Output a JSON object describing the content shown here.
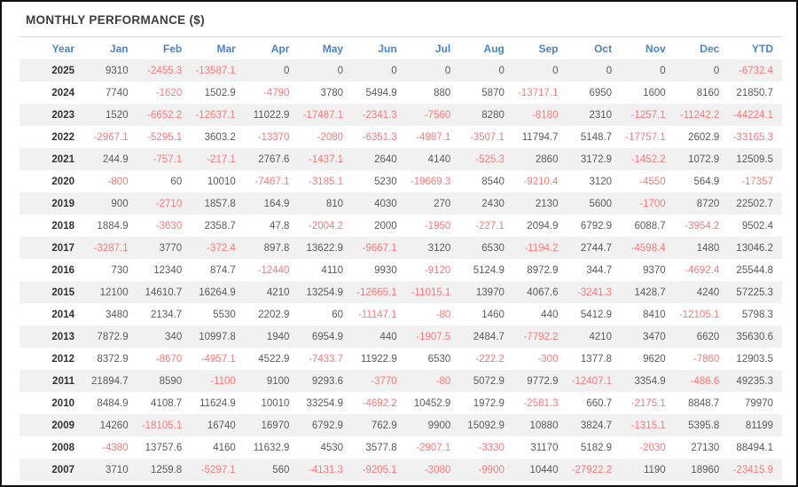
{
  "page": {
    "title": "MONTHLY PERFORMANCE ($)"
  },
  "colors": {
    "header_blue": "#4a84c4",
    "negative_red": "#fb7878",
    "value_gray": "#5a5a5a",
    "year_dark": "#333333",
    "stripe_gray": "#f1f1f1",
    "frame_border": "#111111"
  },
  "table": {
    "columns": [
      "Year",
      "Jan",
      "Feb",
      "Mar",
      "Apr",
      "May",
      "Jun",
      "Jul",
      "Aug",
      "Sep",
      "Oct",
      "Nov",
      "Dec",
      "YTD"
    ],
    "rows": [
      {
        "year": "2025",
        "values": [
          9310,
          -2455.3,
          -13587.1,
          0,
          0,
          0,
          0,
          0,
          0,
          0,
          0,
          0,
          -6732.4
        ]
      },
      {
        "year": "2024",
        "values": [
          7740,
          -1620,
          1502.9,
          -4790,
          3780,
          5494.9,
          880,
          5870,
          -13717.1,
          6950,
          1600,
          8160,
          21850.7
        ]
      },
      {
        "year": "2023",
        "values": [
          1520,
          -6652.2,
          -12637.1,
          11022.9,
          -17487.1,
          -2341.3,
          -7560,
          8280,
          -8180,
          2310,
          -1257.1,
          -11242.2,
          -44224.1
        ]
      },
      {
        "year": "2022",
        "values": [
          -2967.1,
          -5295.1,
          3603.2,
          -13370,
          -2080,
          -6351.3,
          -4987.1,
          -3507.1,
          11794.7,
          5148.7,
          -17757.1,
          2602.9,
          -33165.3
        ]
      },
      {
        "year": "2021",
        "values": [
          244.9,
          -757.1,
          -217.1,
          2767.6,
          -1437.1,
          2640,
          4140,
          -525.3,
          2860,
          3172.9,
          -1452.2,
          1072.9,
          12509.5
        ]
      },
      {
        "year": "2020",
        "values": [
          -800,
          60,
          10010,
          -7467.1,
          -3185.1,
          5230,
          -19669.3,
          8540,
          -9210.4,
          3120,
          -4550,
          564.9,
          -17357
        ]
      },
      {
        "year": "2019",
        "values": [
          900,
          -2710,
          1857.8,
          164.9,
          810,
          4030,
          270,
          2430,
          2130,
          5600,
          -1700,
          8720,
          22502.7
        ]
      },
      {
        "year": "2018",
        "values": [
          1884.9,
          -3630,
          2358.7,
          47.8,
          -2004.2,
          2000,
          -1950,
          -227.1,
          2094.9,
          6792.9,
          6088.7,
          -3954.2,
          9502.4
        ]
      },
      {
        "year": "2017",
        "values": [
          -3287.1,
          3770,
          -372.4,
          897.8,
          13622.9,
          -9667.1,
          3120,
          6530,
          -1194.2,
          2744.7,
          -4598.4,
          1480,
          13046.2
        ]
      },
      {
        "year": "2016",
        "values": [
          730,
          12340,
          874.7,
          -12440,
          4110,
          9930,
          -9120,
          5124.9,
          8972.9,
          344.7,
          9370,
          -4692.4,
          25544.8
        ]
      },
      {
        "year": "2015",
        "values": [
          12100,
          14610.7,
          16264.9,
          4210,
          13254.9,
          -12665.1,
          -11015.1,
          13970,
          4067.6,
          -3241.3,
          1428.7,
          4240,
          57225.3
        ]
      },
      {
        "year": "2014",
        "values": [
          3480,
          2134.7,
          5530,
          2202.9,
          60,
          -11147.1,
          -80,
          1460,
          440,
          5412.9,
          8410,
          -12105.1,
          5798.3
        ]
      },
      {
        "year": "2013",
        "values": [
          7872.9,
          340,
          10997.8,
          1940,
          6954.9,
          440,
          -1907.5,
          2484.7,
          -7792.2,
          4210,
          3470,
          6620,
          35630.6
        ]
      },
      {
        "year": "2012",
        "values": [
          8372.9,
          -8670,
          -4957.1,
          4522.9,
          -7433.7,
          11922.9,
          6530,
          -222.2,
          -300,
          1377.8,
          9620,
          -7860,
          12903.5
        ]
      },
      {
        "year": "2011",
        "values": [
          21894.7,
          8590,
          -1100,
          9100,
          9293.6,
          -3770,
          -80,
          5072.9,
          9772.9,
          -12407.1,
          3354.9,
          -486.6,
          49235.3
        ]
      },
      {
        "year": "2010",
        "values": [
          8484.9,
          4108.7,
          11624.9,
          10010,
          33254.9,
          -4692.2,
          10452.9,
          1972.9,
          -2581.3,
          660.7,
          -2175.1,
          8848.7,
          79970
        ]
      },
      {
        "year": "2009",
        "values": [
          14260,
          -18105.1,
          16740,
          16970,
          6792.9,
          762.9,
          9900,
          15092.9,
          10880,
          3824.7,
          -1315.1,
          5395.8,
          81199
        ]
      },
      {
        "year": "2008",
        "values": [
          -4380,
          13757.6,
          4160,
          11632.9,
          4530,
          3577.8,
          -2907.1,
          -3330,
          31170,
          5182.9,
          -2030,
          27130,
          88494.1
        ]
      },
      {
        "year": "2007",
        "values": [
          3710,
          1259.8,
          -5297.1,
          560,
          -4131.3,
          -9205.1,
          -3080,
          -9900,
          10440,
          -27922.2,
          1190,
          18960,
          -23415.9
        ]
      }
    ]
  }
}
